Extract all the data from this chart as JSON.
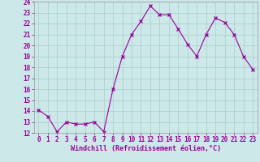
{
  "x": [
    0,
    1,
    2,
    3,
    4,
    5,
    6,
    7,
    8,
    9,
    10,
    11,
    12,
    13,
    14,
    15,
    16,
    17,
    18,
    19,
    20,
    21,
    22,
    23
  ],
  "y": [
    14.1,
    13.5,
    12.1,
    13.0,
    12.8,
    12.8,
    13.0,
    12.1,
    16.0,
    19.0,
    21.0,
    22.2,
    23.6,
    22.8,
    22.8,
    21.5,
    20.1,
    19.0,
    21.0,
    22.5,
    22.1,
    21.0,
    19.0,
    17.8
  ],
  "line_color": "#990099",
  "marker": "x",
  "bg_color": "#cce8e8",
  "grid_color": "#aacccc",
  "xlabel": "Windchill (Refroidissement éolien,°C)",
  "tick_color": "#990099",
  "ylim": [
    12,
    24
  ],
  "xlim_min": -0.5,
  "xlim_max": 23.5,
  "yticks": [
    12,
    13,
    14,
    15,
    16,
    17,
    18,
    19,
    20,
    21,
    22,
    23,
    24
  ],
  "xticks": [
    0,
    1,
    2,
    3,
    4,
    5,
    6,
    7,
    8,
    9,
    10,
    11,
    12,
    13,
    14,
    15,
    16,
    17,
    18,
    19,
    20,
    21,
    22,
    23
  ],
  "tick_fontsize": 5.5,
  "label_fontsize": 6.0,
  "line_width": 0.8,
  "marker_size": 3
}
